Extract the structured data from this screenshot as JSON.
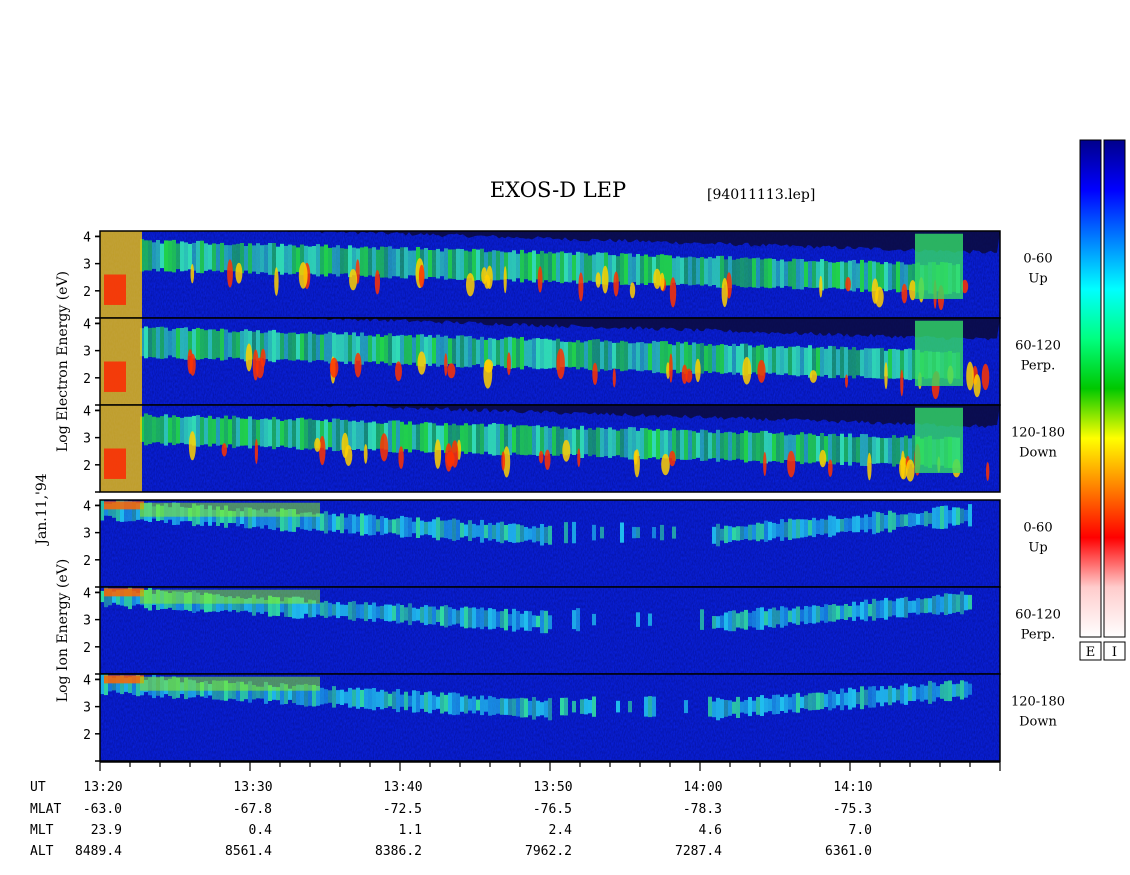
{
  "chart_data": {
    "type": "heatmap",
    "title": "EXOS-D LEP",
    "file": "[94011113.lep]",
    "date_label": "Jan.11,'94",
    "x_range": [
      "13:20",
      "14:20"
    ],
    "x_ticks": [
      "13:20",
      "13:30",
      "13:40",
      "13:50",
      "14:00",
      "14:10"
    ],
    "ylim": [
      1,
      4.2
    ],
    "y_ticks": [
      "2",
      "3",
      "4"
    ],
    "groups": [
      {
        "name": "electron",
        "ylabel": [
          "Log",
          "Electron",
          "Energy",
          "(eV)"
        ]
      },
      {
        "name": "ion",
        "ylabel": [
          "Log",
          "Ion",
          "Energy",
          "(eV)"
        ]
      }
    ],
    "panels": [
      {
        "group": "electron",
        "pitch": "0-60",
        "dir": "Up"
      },
      {
        "group": "electron",
        "pitch": "60-120",
        "dir": "Perp."
      },
      {
        "group": "electron",
        "pitch": "120-180",
        "dir": "Down"
      },
      {
        "group": "ion",
        "pitch": "0-60",
        "dir": "Up"
      },
      {
        "group": "ion",
        "pitch": "60-120",
        "dir": "Perp."
      },
      {
        "group": "ion",
        "pitch": "120-180",
        "dir": "Down"
      }
    ],
    "ephemeris": {
      "labels": [
        "UT",
        "MLAT",
        "MLT",
        "ALT"
      ],
      "rows": [
        {
          "MLAT": "-63.0",
          "MLT": "23.9",
          "ALT": "8489.4"
        },
        {
          "MLAT": "-67.8",
          "MLT": "0.4",
          "ALT": "8561.4"
        },
        {
          "MLAT": "-72.5",
          "MLT": "1.1",
          "ALT": "8386.2"
        },
        {
          "MLAT": "-76.5",
          "MLT": "2.4",
          "ALT": "7962.2"
        },
        {
          "MLAT": "-78.3",
          "MLT": "4.6",
          "ALT": "7287.4"
        },
        {
          "MLAT": "-75.3",
          "MLT": "7.0",
          "ALT": "6361.0"
        }
      ]
    },
    "colorbars": [
      {
        "label": "E"
      },
      {
        "label": "I"
      }
    ],
    "colormap": [
      "#ffffff",
      "#ffcccc",
      "#ff0000",
      "#ff8000",
      "#ffff00",
      "#00c800",
      "#00ff80",
      "#00ffff",
      "#0080ff",
      "#0000ff",
      "#00008b"
    ]
  }
}
